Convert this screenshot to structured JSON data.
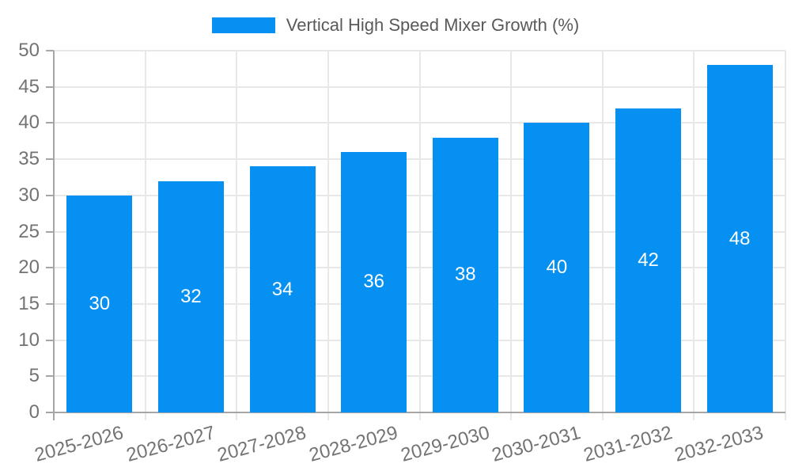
{
  "chart_data": {
    "type": "bar",
    "title": "",
    "categories": [
      "2025-2026",
      "2026-2027",
      "2027-2028",
      "2028-2029",
      "2029-2030",
      "2030-2031",
      "2031-2032",
      "2032-2033"
    ],
    "series": [
      {
        "name": "Vertical High Speed Mixer Growth (%)",
        "values": [
          30,
          32,
          34,
          36,
          38,
          40,
          42,
          48
        ]
      }
    ],
    "xlabel": "",
    "ylabel": "",
    "ylim": [
      0,
      50
    ],
    "ytick_step": 5,
    "yticks": [
      0,
      5,
      10,
      15,
      20,
      25,
      30,
      35,
      40,
      45,
      50
    ],
    "grid": true,
    "legend_position": "top-center",
    "bar_value_labels_visible": true,
    "x_label_rotation_deg": -15,
    "colors": {
      "bar": "#0590f2",
      "axis": "#a6a6a6",
      "grid": "#e8e8e8",
      "tick_label": "#737373",
      "legend_text": "#595959",
      "bar_label": "#ffffff"
    }
  }
}
